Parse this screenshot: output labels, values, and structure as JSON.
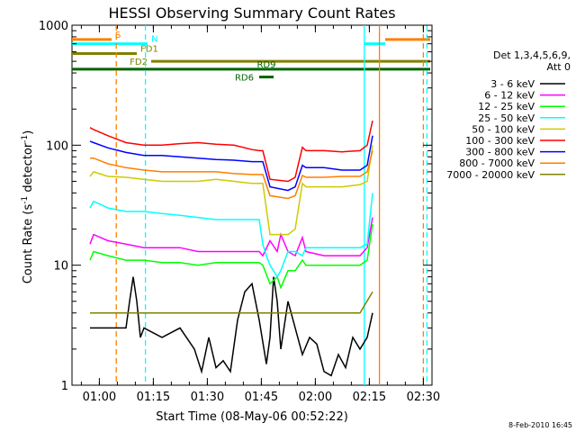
{
  "chart_data": {
    "type": "line",
    "title": "HESSI Observing Summary Count Rates",
    "xlabel": "Start Time (08-May-06 00:52:22)",
    "ylabel_main": "Count Rate (s",
    "ylabel_sup1": "-1",
    "ylabel_mid": " detector",
    "ylabel_sup2": "-1",
    "ylabel_end": ")",
    "x_unit": "minutes after 00:52:22 UT",
    "xlim": [
      0,
      100
    ],
    "ylim": [
      1,
      1000
    ],
    "yscale": "log",
    "x_ticks": [
      {
        "value": 7.6,
        "label": "01:00"
      },
      {
        "value": 22.6,
        "label": "01:15"
      },
      {
        "value": 37.6,
        "label": "01:30"
      },
      {
        "value": 52.6,
        "label": "01:45"
      },
      {
        "value": 67.6,
        "label": "02:00"
      },
      {
        "value": 82.6,
        "label": "02:15"
      },
      {
        "value": 97.6,
        "label": "02:30"
      }
    ],
    "y_ticks": [
      {
        "value": 1,
        "label": "1"
      },
      {
        "value": 10,
        "label": "10"
      },
      {
        "value": 100,
        "label": "100"
      },
      {
        "value": 1000,
        "label": "1000"
      }
    ],
    "legend_header": [
      "Det 1,3,4,5,6,9,",
      "Att 0"
    ],
    "legend_position": "right",
    "series": [
      {
        "name": "3 - 6 keV",
        "color": "#000000",
        "x": [
          5,
          15,
          16,
          17,
          18,
          19,
          20,
          25,
          30,
          34,
          36,
          38,
          40,
          42,
          44,
          46,
          48,
          50,
          52,
          54,
          55,
          56,
          57,
          58,
          60,
          62,
          64,
          66,
          68,
          70,
          72,
          74,
          76,
          78,
          80,
          82,
          83.5
        ],
        "y": [
          3,
          3,
          5,
          8,
          5,
          2.5,
          3,
          2.5,
          3,
          2,
          1.3,
          2.5,
          1.4,
          1.6,
          1.3,
          3.5,
          6,
          7,
          3.5,
          1.5,
          2.5,
          8,
          5,
          2,
          5,
          3,
          1.8,
          2.5,
          2.2,
          1.3,
          1.2,
          1.8,
          1.4,
          2.5,
          2,
          2.5,
          4
        ]
      },
      {
        "name": "6 - 12 keV",
        "color": "#ff00ff",
        "x": [
          5,
          6,
          10,
          15,
          20,
          25,
          30,
          35,
          40,
          45,
          50,
          52,
          53,
          55,
          57,
          58,
          60,
          62,
          64,
          65,
          70,
          75,
          80,
          82,
          83.5
        ],
        "y": [
          15,
          18,
          16,
          15,
          14,
          14,
          14,
          13,
          13,
          13,
          13,
          13,
          12,
          16,
          13,
          18,
          13,
          12,
          17,
          13,
          12,
          12,
          12,
          14,
          25
        ]
      },
      {
        "name": "12 - 25 keV",
        "color": "#00ff00",
        "x": [
          5,
          6,
          10,
          15,
          20,
          25,
          30,
          35,
          40,
          45,
          50,
          52,
          53,
          55,
          57,
          58,
          60,
          62,
          64,
          65,
          70,
          75,
          80,
          82,
          83.5
        ],
        "y": [
          11,
          13,
          12,
          11,
          11,
          10.5,
          10.5,
          10,
          10.5,
          10.5,
          10.5,
          10.5,
          10,
          7,
          8,
          6.5,
          9,
          9,
          11,
          10,
          10,
          10,
          10,
          11,
          22
        ]
      },
      {
        "name": "25 - 50 keV",
        "color": "#00ffff",
        "x": [
          5,
          6,
          8,
          10,
          15,
          20,
          25,
          30,
          35,
          40,
          45,
          50,
          52,
          53,
          54,
          55,
          57,
          58,
          60,
          62,
          64,
          65,
          70,
          75,
          80,
          82,
          83.5
        ],
        "y": [
          30,
          34,
          32,
          30,
          28,
          28,
          27,
          26,
          25,
          24,
          24,
          24,
          24,
          15,
          12,
          10,
          8,
          9,
          13,
          13,
          12,
          14,
          14,
          14,
          14,
          15,
          40
        ]
      },
      {
        "name": "50 - 100 keV",
        "color": "#cccc00",
        "x": [
          5,
          6,
          10,
          15,
          20,
          25,
          30,
          35,
          40,
          45,
          50,
          52,
          53,
          55,
          60,
          62,
          64,
          65,
          70,
          75,
          80,
          82,
          83.5
        ],
        "y": [
          55,
          60,
          55,
          54,
          52,
          50,
          50,
          50,
          52,
          50,
          48,
          48,
          48,
          18,
          18,
          20,
          48,
          45,
          45,
          45,
          47,
          50,
          100
        ]
      },
      {
        "name": "100 - 300 keV",
        "color": "#ff0000",
        "x": [
          5,
          6,
          10,
          15,
          20,
          25,
          30,
          35,
          40,
          45,
          50,
          52,
          53,
          55,
          60,
          62,
          64,
          65,
          70,
          75,
          80,
          82,
          83.5
        ],
        "y": [
          140,
          135,
          120,
          105,
          100,
          100,
          103,
          105,
          102,
          100,
          92,
          90,
          90,
          52,
          50,
          54,
          96,
          90,
          90,
          88,
          90,
          100,
          160
        ]
      },
      {
        "name": "300 - 800 keV",
        "color": "#0000ff",
        "x": [
          5,
          6,
          10,
          15,
          20,
          25,
          30,
          35,
          40,
          45,
          50,
          52,
          53,
          55,
          60,
          62,
          64,
          65,
          70,
          75,
          80,
          82,
          83.5
        ],
        "y": [
          108,
          105,
          95,
          87,
          82,
          82,
          80,
          78,
          76,
          75,
          73,
          73,
          73,
          45,
          42,
          45,
          68,
          65,
          65,
          62,
          62,
          68,
          120
        ]
      },
      {
        "name": "800 - 7000 keV",
        "color": "#ff7f00",
        "x": [
          5,
          6,
          10,
          15,
          20,
          25,
          30,
          35,
          40,
          45,
          50,
          52,
          53,
          55,
          60,
          62,
          64,
          65,
          70,
          75,
          80,
          82,
          83.5
        ],
        "y": [
          78,
          78,
          70,
          65,
          62,
          60,
          60,
          60,
          60,
          58,
          57,
          57,
          57,
          38,
          36,
          38,
          56,
          54,
          54,
          55,
          55,
          60,
          90
        ]
      },
      {
        "name": "7000 - 20000 keV",
        "color": "#808000",
        "x": [
          5,
          10,
          15,
          20,
          25,
          30,
          35,
          40,
          45,
          50,
          55,
          60,
          65,
          70,
          75,
          80,
          83.5
        ],
        "y": [
          4,
          4,
          4,
          4,
          4,
          4,
          4,
          4,
          4,
          4,
          4,
          4,
          4,
          4,
          4,
          4,
          6
        ]
      }
    ],
    "flags": [
      {
        "label": "S",
        "color": "#ff7f00",
        "y": 760,
        "segments": [
          [
            0,
            11
          ],
          [
            87,
            99.5
          ]
        ]
      },
      {
        "label": "N",
        "color": "#00ffff",
        "y": 700,
        "segments": [
          [
            0,
            21
          ],
          [
            81.2,
            87
          ]
        ]
      },
      {
        "label": "FD1",
        "color": "#808000",
        "y": 580,
        "segments": [
          [
            0,
            18
          ]
        ]
      },
      {
        "label": "FD2",
        "color": "#808000",
        "y": 500,
        "segments": [
          [
            22,
            99.5
          ]
        ]
      },
      {
        "label": "RD9",
        "color": "#006400",
        "y": 430,
        "segments": [
          [
            0,
            99.5
          ]
        ]
      },
      {
        "label": "RD6",
        "color": "#006400",
        "y": 370,
        "segments": [
          [
            52,
            56
          ]
        ]
      }
    ],
    "event_lines": [
      {
        "x": 12.3,
        "color": "#ff7f00",
        "dashed": true
      },
      {
        "x": 20.4,
        "color": "#00ffff",
        "dashed": true
      },
      {
        "x": 81.2,
        "color": "#00ffff",
        "dashed": false
      },
      {
        "x": 85.4,
        "color": "#ff7f00",
        "dashed": false
      },
      {
        "x": 97.6,
        "color": "#ff7f00",
        "dashed": true
      },
      {
        "x": 98.6,
        "color": "#00ffff",
        "dashed": true
      }
    ],
    "grid": false,
    "footer": "8-Feb-2010 16:45"
  }
}
